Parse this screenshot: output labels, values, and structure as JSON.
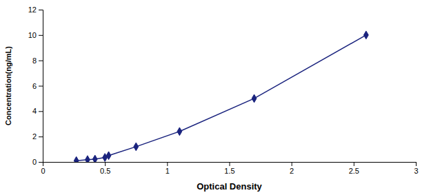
{
  "chart_data": {
    "type": "line",
    "x": [
      0.27,
      0.36,
      0.42,
      0.5,
      0.53,
      0.75,
      1.1,
      1.7,
      2.6
    ],
    "values": [
      0.1,
      0.18,
      0.22,
      0.35,
      0.5,
      1.2,
      2.4,
      5.0,
      10.0
    ],
    "color": "#1a237e",
    "marker": "diamond",
    "line_style": "solid",
    "xlabel": "Optical Density",
    "ylabel": "Concentration(ng/mL)",
    "xlim": [
      0,
      3
    ],
    "ylim": [
      0,
      12
    ],
    "xticks": [
      0,
      0.5,
      1,
      1.5,
      2,
      2.5,
      3
    ],
    "yticks": [
      0,
      2,
      4,
      6,
      8,
      10,
      12
    ],
    "grid": false
  }
}
